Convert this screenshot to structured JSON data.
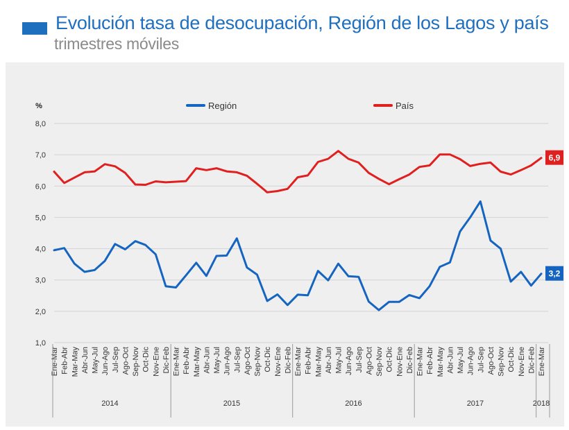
{
  "header": {
    "title": "Evolución tasa de desocupación, Región de los Lagos y país",
    "subtitle": "trimestres móviles"
  },
  "chart_data": {
    "type": "line",
    "ylabel": "%",
    "ylim": [
      1.0,
      8.0
    ],
    "yticks": [
      "1,0",
      "2,0",
      "3,0",
      "4,0",
      "5,0",
      "6,0",
      "7,0",
      "8,0"
    ],
    "grid": true,
    "legend_position": "top",
    "categories": [
      "Ene-Mar",
      "Feb-Abr",
      "Mar-May",
      "Abr-Jun",
      "May-Jul",
      "Jun-Ago",
      "Jul-Sep",
      "Ago-Oct",
      "Sep-Nov",
      "Oct-Dic",
      "Nov-Ene",
      "Dic-Feb",
      "Ene-Mar",
      "Feb-Abr",
      "Mar-May",
      "Abr-Jun",
      "May-Jul",
      "Jun-Ago",
      "Jul-Sep",
      "Ago-Oct",
      "Sep-Nov",
      "Oct-Dic",
      "Nov-Ene",
      "Dic-Feb",
      "Ene-Mar",
      "Feb-Abr",
      "Mar-May",
      "Abr-Jun",
      "May-Jul",
      "Jun-Ago",
      "Jul-Sep",
      "Ago-Oct",
      "Sep-Nov",
      "Oct-Dic",
      "Nov-Ene",
      "Dic-Feb",
      "Ene-Mar",
      "Feb-Abr",
      "Mar-May",
      "Abr-Jun",
      "May-Jul",
      "Jun-Ago",
      "Jul-Sep",
      "Ago-Oct",
      "Sep-Nov",
      "Oct-Dic",
      "Nov-Ene",
      "Dic-Feb",
      "Ene-Mar"
    ],
    "year_groups": [
      {
        "label": "2014",
        "count": 12
      },
      {
        "label": "2015",
        "count": 12
      },
      {
        "label": "2016",
        "count": 12
      },
      {
        "label": "2017",
        "count": 12
      },
      {
        "label": "2018",
        "count": 1
      }
    ],
    "series": [
      {
        "name": "Región",
        "color": "#1565c0",
        "end_label": "3,2",
        "values": [
          3.95,
          4.02,
          3.52,
          3.26,
          3.32,
          3.61,
          4.15,
          3.98,
          4.24,
          4.12,
          3.82,
          2.8,
          2.76,
          3.15,
          3.55,
          3.13,
          3.77,
          3.78,
          4.33,
          3.4,
          3.17,
          2.33,
          2.54,
          2.2,
          2.53,
          2.51,
          3.29,
          2.99,
          3.52,
          3.12,
          3.1,
          2.31,
          2.04,
          2.3,
          2.3,
          2.52,
          2.42,
          2.8,
          3.42,
          3.56,
          4.55,
          5.0,
          5.51,
          4.26,
          4.0,
          2.95,
          3.26,
          2.82,
          3.2
        ]
      },
      {
        "name": "País",
        "color": "#e01f1f",
        "end_label": "6,9",
        "values": [
          6.46,
          6.1,
          6.27,
          6.44,
          6.47,
          6.7,
          6.63,
          6.42,
          6.05,
          6.04,
          6.15,
          6.12,
          6.14,
          6.16,
          6.57,
          6.51,
          6.57,
          6.47,
          6.44,
          6.33,
          6.07,
          5.8,
          5.84,
          5.91,
          6.28,
          6.34,
          6.77,
          6.87,
          7.12,
          6.87,
          6.75,
          6.42,
          6.23,
          6.06,
          6.22,
          6.37,
          6.61,
          6.66,
          7.01,
          7.01,
          6.86,
          6.64,
          6.71,
          6.75,
          6.46,
          6.37,
          6.51,
          6.66,
          6.9
        ]
      }
    ]
  }
}
